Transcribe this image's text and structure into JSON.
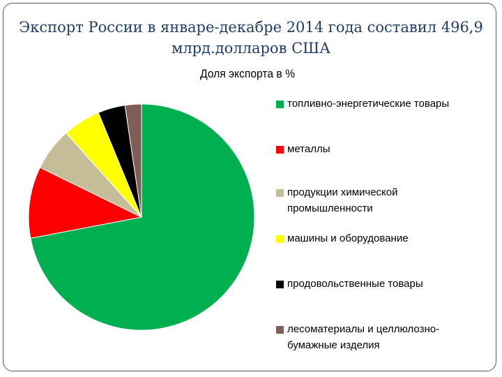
{
  "slide": {
    "title_line1": "Экспорт России в январе-декабре 2014 года составил 496,9",
    "title_line2": "млрд.долларов США"
  },
  "chart_data": {
    "type": "pie",
    "title": "Доля экспорта в %",
    "legend_position": "right",
    "slices": [
      {
        "label": "топливно-энергетические товары",
        "value": 70.5,
        "color": "#00b050"
      },
      {
        "label": "металлы",
        "value": 10.0,
        "color": "#ff0000"
      },
      {
        "label": "продукции химической промышленности",
        "value": 6.0,
        "color": "#c4bd97"
      },
      {
        "label": "машины и оборудование",
        "value": 5.3,
        "color": "#ffff00"
      },
      {
        "label": "продовольственные товары",
        "value": 3.8,
        "color": "#000000"
      },
      {
        "label": "лесоматериалы и целлюлозно-бумажные изделия",
        "value": 2.3,
        "color": "#7f5f55"
      }
    ]
  }
}
